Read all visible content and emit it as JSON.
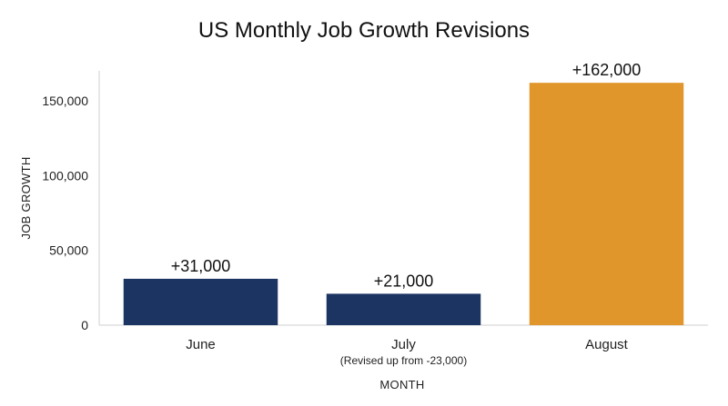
{
  "chart_data": {
    "type": "bar",
    "title": "US Monthly Job Growth Revisions",
    "xlabel": "MONTH",
    "ylabel": "JOB GROWTH",
    "categories": [
      "June",
      "July",
      "August"
    ],
    "category_notes": [
      "",
      "(Revised up from -23,000)",
      ""
    ],
    "values": [
      31000,
      21000,
      162000
    ],
    "data_labels": [
      "+31,000",
      "+21,000",
      "+162,000"
    ],
    "bar_colors": [
      "#1c3461",
      "#1c3461",
      "#e0962a"
    ],
    "ylim": [
      0,
      170000
    ],
    "yticks": [
      0,
      50000,
      100000,
      150000
    ],
    "ytick_labels": [
      "0",
      "50,000",
      "100,000",
      "150,000"
    ],
    "grid": false,
    "legend": "none"
  }
}
